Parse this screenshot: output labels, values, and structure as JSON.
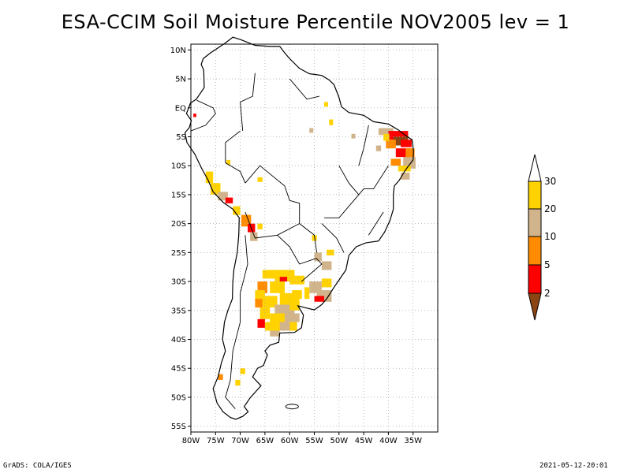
{
  "title": "ESA-CCIM Soil Moisture Percentile NOV2005 lev = 1",
  "footer": {
    "left": "GrADS: COLA/IGES",
    "right": "2021-05-12-20:01"
  },
  "map": {
    "lon_range": [
      -80,
      -30
    ],
    "lat_range": [
      -56,
      11
    ],
    "lat_ticks": [
      "10N",
      "5N",
      "EQ",
      "5S",
      "10S",
      "15S",
      "20S",
      "25S",
      "30S",
      "35S",
      "40S",
      "45S",
      "50S",
      "55S"
    ],
    "lat_tick_values": [
      10,
      5,
      0,
      -5,
      -10,
      -15,
      -20,
      -25,
      -30,
      -35,
      -40,
      -45,
      -50,
      -55
    ],
    "lon_ticks": [
      "80W",
      "75W",
      "70W",
      "65W",
      "60W",
      "55W",
      "50W",
      "45W",
      "40W",
      "35W"
    ],
    "lon_tick_values": [
      -80,
      -75,
      -70,
      -65,
      -60,
      -55,
      -50,
      -45,
      -40,
      -35
    ],
    "grid": true
  },
  "colorbar": {
    "labels": [
      "30",
      "20",
      "10",
      "5",
      "2"
    ],
    "colors": [
      "#ffffff",
      "#ffd200",
      "#d2b48c",
      "#ff8c00",
      "#ff0000",
      "#8b4513"
    ]
  }
}
